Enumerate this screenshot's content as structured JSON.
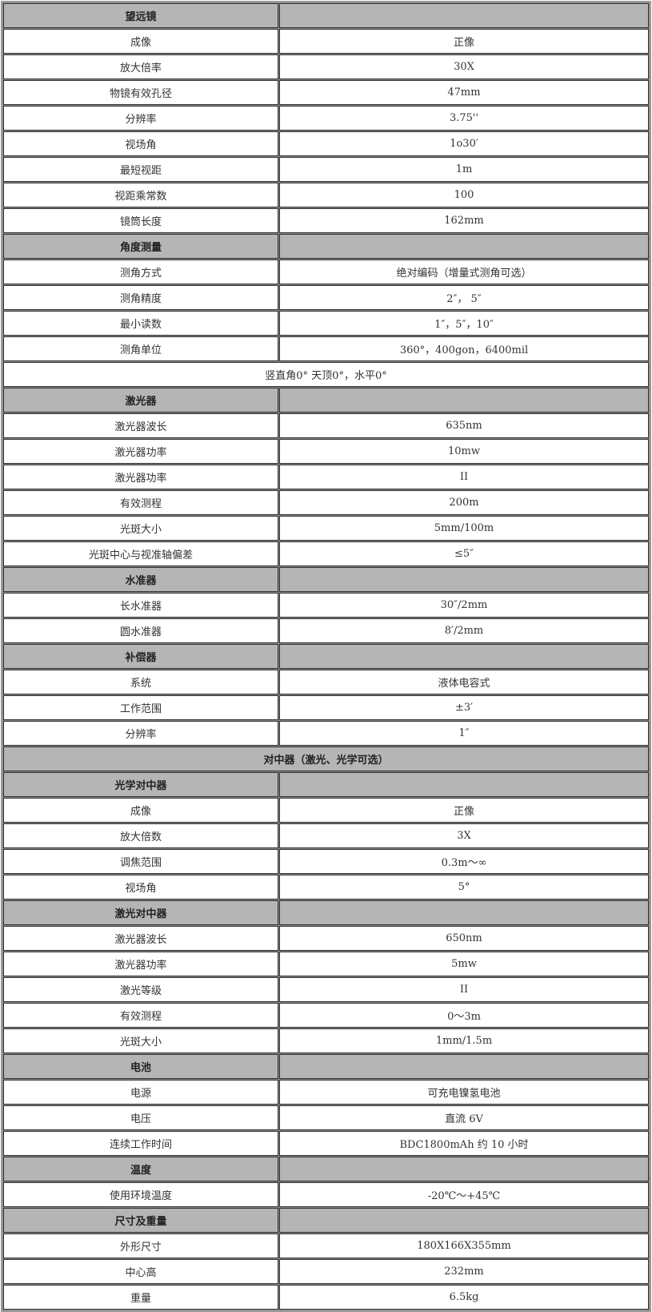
{
  "header_color": "#b5b5b5",
  "sections": [
    {
      "title": "望远镜",
      "rows": [
        {
          "k": "成像",
          "v": "正像"
        },
        {
          "k": "放大倍率",
          "v": "30X"
        },
        {
          "k": "物镜有效孔径",
          "v": "47mm"
        },
        {
          "k": "分辨率",
          "v": "3.75''"
        },
        {
          "k": "视场角",
          "v": "1o30′"
        },
        {
          "k": "最短视距",
          "v": "1m"
        },
        {
          "k": "视距乘常数",
          "v": "100"
        },
        {
          "k": "镜筒长度",
          "v": "162mm"
        }
      ]
    },
    {
      "title": "角度测量",
      "rows": [
        {
          "k": "测角方式",
          "v": "绝对编码（增量式测角可选）"
        },
        {
          "k": "测角精度",
          "v": "2″， 5″"
        },
        {
          "k": "最小读数",
          "v": "1″，5″，10″"
        },
        {
          "k": "测角单位",
          "v": "360°，400gon，6400mil"
        },
        {
          "span": "竖直角0°  天顶0°，水平0°"
        }
      ]
    },
    {
      "title": "激光器",
      "rows": [
        {
          "k": "激光器波长",
          "v": "635nm"
        },
        {
          "k": "激光器功率",
          "v": "10mw"
        },
        {
          "k": "激光器功率",
          "v": "II"
        },
        {
          "k": "有效测程",
          "v": "200m"
        },
        {
          "k": "光斑大小",
          "v": "5mm/100m"
        },
        {
          "k": "光斑中心与视准轴偏差",
          "v": "≤5″"
        }
      ]
    },
    {
      "title": "水准器",
      "rows": [
        {
          "k": "长水准器",
          "v": "30″/2mm"
        },
        {
          "k": "圆水准器",
          "v": "8′/2mm"
        }
      ]
    },
    {
      "title": "补偿器",
      "rows": [
        {
          "k": "系统",
          "v": "液体电容式"
        },
        {
          "k": "工作范围",
          "v": "±3′"
        },
        {
          "k": "分辨率",
          "v": "1″"
        }
      ]
    },
    {
      "span_title": "对中器（激光、光学可选）",
      "rows": []
    },
    {
      "title": "光学对中器",
      "rows": [
        {
          "k": "成像",
          "v": "正像"
        },
        {
          "k": "放大倍数",
          "v": "3X"
        },
        {
          "k": "调焦范围",
          "v": "0.3m～∞"
        },
        {
          "k": "视场角",
          "v": "5°"
        }
      ]
    },
    {
      "title": "激光对中器",
      "rows": [
        {
          "k": "激光器波长",
          "v": "650nm"
        },
        {
          "k": "激光器功率",
          "v": "5mw"
        },
        {
          "k": "激光等级",
          "v": "II"
        },
        {
          "k": "有效测程",
          "v": "0～3m"
        },
        {
          "k": "光斑大小",
          "v": "1mm/1.5m"
        }
      ]
    },
    {
      "title": "电池",
      "rows": [
        {
          "k": "电源",
          "v": "可充电镍氢电池"
        },
        {
          "k": "电压",
          "v": "直流 6V"
        },
        {
          "k": "连续工作时间",
          "v": "BDC1800mAh 约 10 小时"
        }
      ]
    },
    {
      "title": "温度",
      "rows": [
        {
          "k": "使用环境温度",
          "v": "-20℃～+45℃"
        }
      ]
    },
    {
      "title": "尺寸及重量",
      "rows": [
        {
          "k": "外形尺寸",
          "v": "180X166X355mm"
        },
        {
          "k": "中心高",
          "v": "232mm"
        },
        {
          "k": "重量",
          "v": "6.5kg"
        }
      ]
    }
  ]
}
